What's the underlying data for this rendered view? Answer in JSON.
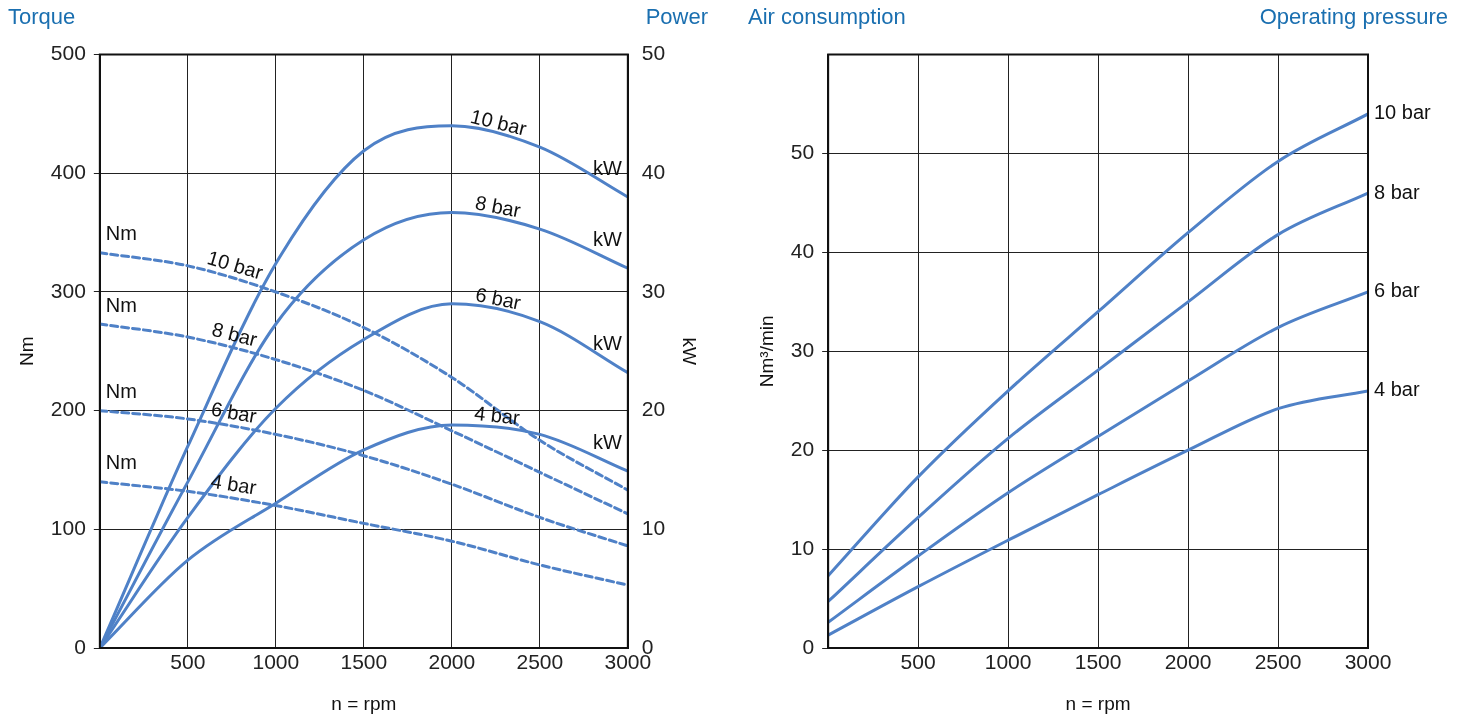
{
  "chart_data": [
    {
      "type": "line",
      "title": "Torque",
      "subtitle": "Power",
      "xlabel": "n = rpm",
      "ylabel": "Nm",
      "y2label": "kW",
      "x": [
        0,
        500,
        1000,
        1500,
        2000,
        2500,
        3000
      ],
      "xlim": [
        0,
        3000
      ],
      "xticks": [
        {
          "value": 0,
          "label": null
        },
        500,
        1000,
        1500,
        2000,
        2500,
        3000
      ],
      "ylim": [
        0,
        500
      ],
      "yticks": [
        0,
        100,
        200,
        300,
        400,
        500
      ],
      "y2lim": [
        0,
        50
      ],
      "y2ticks": [
        0,
        10,
        20,
        30,
        40,
        50
      ],
      "grid": true,
      "legend": false,
      "marker": "none",
      "series": [
        {
          "name": "10 bar",
          "color": "#4f81c7",
          "axis": "y2",
          "values": [
            0,
            17,
            32.4,
            41.9,
            44,
            42.2,
            38
          ]
        },
        {
          "name": "8 bar",
          "color": "#4f81c7",
          "axis": "y2",
          "values": [
            0,
            14,
            27.3,
            34.4,
            36.7,
            35.3,
            32
          ]
        },
        {
          "name": "6 bar",
          "color": "#4f81c7",
          "axis": "y2",
          "values": [
            0,
            11,
            20.2,
            26,
            29,
            27.5,
            23.2
          ]
        },
        {
          "name": "4 bar",
          "color": "#4f81c7",
          "axis": "y2",
          "values": [
            0,
            7.4,
            12.2,
            16.7,
            18.8,
            18,
            14.9
          ]
        },
        {
          "name": "10 bar",
          "color": "#4f81c7",
          "line_style": "dashed",
          "values": [
            333,
            322,
            300,
            270,
            228,
            175,
            133
          ]
        },
        {
          "name": "8 bar",
          "color": "#4f81c7",
          "line_style": "dashed",
          "values": [
            273,
            262,
            243,
            217,
            183,
            148,
            113
          ]
        },
        {
          "name": "6 bar",
          "color": "#4f81c7",
          "line_style": "dashed",
          "values": [
            200,
            193,
            180,
            162,
            138,
            110,
            86
          ]
        },
        {
          "name": "4 bar",
          "color": "#4f81c7",
          "line_style": "dashed",
          "values": [
            140,
            132,
            120,
            105,
            90,
            70,
            53
          ]
        }
      ],
      "annotations": [
        "Nm",
        "Nm",
        "Nm",
        "Nm",
        "kW",
        "kW",
        "kW",
        "kW"
      ]
    },
    {
      "type": "line",
      "title": "Air consumption",
      "subtitle": "Operating pressure",
      "xlabel": "n = rpm",
      "ylabel": "Nm³/min",
      "x": [
        0,
        500,
        1000,
        1500,
        2000,
        2500,
        3000
      ],
      "xlim": [
        0,
        3000
      ],
      "xticks": [
        {
          "value": 0,
          "label": null
        },
        500,
        1000,
        1500,
        2000,
        2500,
        3000
      ],
      "ylim": [
        0,
        60
      ],
      "yticks": [
        0,
        10,
        20,
        30,
        40,
        50
      ],
      "grid": true,
      "legend": false,
      "marker": "none",
      "series": [
        {
          "name": "10 bar",
          "color": "#4f81c7",
          "values": [
            7.3,
            17.3,
            26,
            34,
            42,
            49.2,
            54
          ]
        },
        {
          "name": "8 bar",
          "color": "#4f81c7",
          "values": [
            4.7,
            13.2,
            21.2,
            28.1,
            35,
            41.8,
            46
          ]
        },
        {
          "name": "6 bar",
          "color": "#4f81c7",
          "values": [
            2.6,
            9.3,
            15.7,
            21.4,
            27,
            32.4,
            36
          ]
        },
        {
          "name": "4 bar",
          "color": "#4f81c7",
          "values": [
            1.3,
            6.2,
            10.9,
            15.5,
            20,
            24.2,
            26
          ]
        }
      ]
    }
  ]
}
